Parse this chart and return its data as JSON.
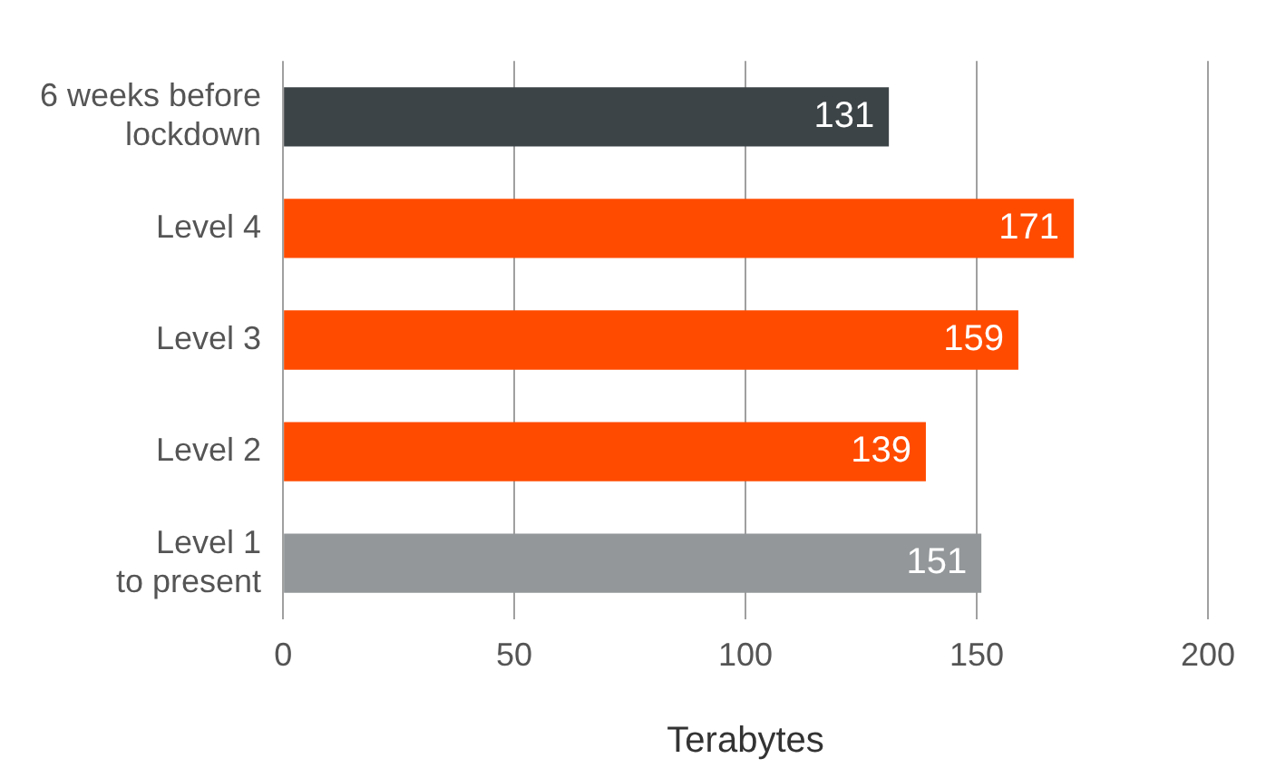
{
  "chart_data": {
    "type": "bar",
    "orientation": "horizontal",
    "xlabel": "Terabytes",
    "categories": [
      "6 weeks before\nlockdown",
      "Level 4",
      "Level 3",
      "Level 2",
      "Level 1\nto present"
    ],
    "values": [
      131,
      171,
      159,
      139,
      151
    ],
    "colors": [
      "#3d4448",
      "#ff4b00",
      "#ff4b00",
      "#ff4b00",
      "#939799"
    ],
    "xlim": [
      0,
      200
    ],
    "xticks": [
      0,
      50,
      100,
      150,
      200
    ],
    "grid": "x",
    "data_labels": true,
    "legend": false
  }
}
